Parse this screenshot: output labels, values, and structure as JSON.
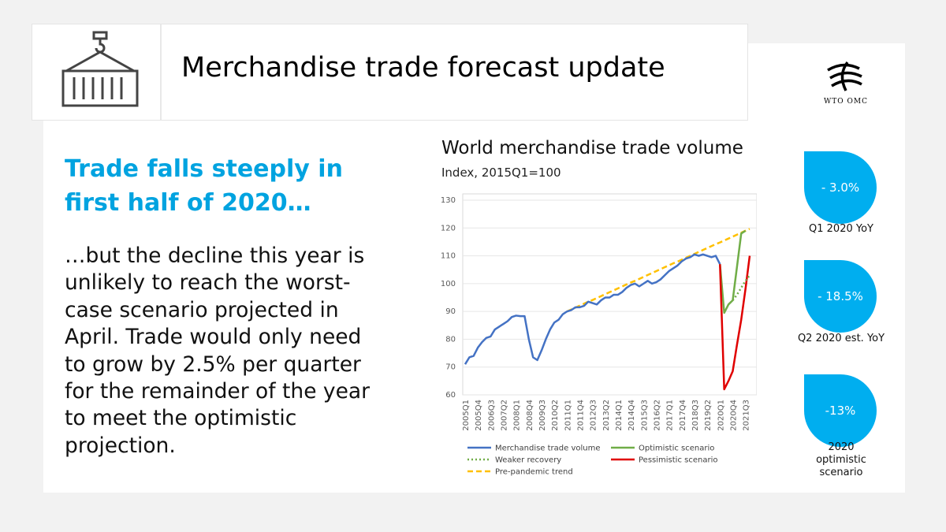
{
  "header": {
    "title": "Merchandise trade forecast update",
    "logo_text": "WTO OMC"
  },
  "headline": {
    "lines": [
      "Trade falls steeply in",
      "first half of 2020…"
    ]
  },
  "body": {
    "lines": [
      "…but the decline this year is",
      "unlikely to reach the worst-",
      "case scenario projected in",
      "April. Trade would only need",
      "to grow by 2.5% per quarter",
      "for the remainder of the year",
      "to meet the optimistic",
      "projection."
    ]
  },
  "stats": [
    {
      "value": "- 3.0%",
      "label": [
        "Q1 2020 YoY"
      ]
    },
    {
      "value": "- 18.5%",
      "label": [
        "Q2 2020 est. YoY"
      ]
    },
    {
      "value": "-13%",
      "label": [
        "2020",
        "optimistic",
        "scenario"
      ]
    }
  ],
  "chart_data": {
    "type": "line",
    "title": "World merchandise trade volume",
    "subtitle": "Index, 2015Q1=100",
    "categories": [
      "2005Q1",
      null,
      null,
      "2005Q4",
      null,
      null,
      "2006Q3",
      null,
      null,
      "2007Q2",
      null,
      null,
      "2008Q1",
      null,
      null,
      "2008Q4",
      null,
      null,
      "2009Q3",
      null,
      null,
      "2010Q2",
      null,
      null,
      "2011Q1",
      null,
      null,
      "2011Q4",
      null,
      null,
      "2012Q3",
      null,
      null,
      "2013Q2",
      null,
      null,
      "2014Q1",
      null,
      null,
      "2014Q4",
      null,
      null,
      "2015Q3",
      null,
      null,
      "2016Q2",
      null,
      null,
      "2017Q1",
      null,
      null,
      "2017Q4",
      null,
      null,
      "2018Q3",
      null,
      null,
      "2019Q2",
      null,
      null,
      "2020Q1",
      null,
      null,
      "2020Q4",
      null,
      null,
      "2021Q3",
      null
    ],
    "ylim": [
      60,
      130
    ],
    "yticks": [
      60,
      70,
      80,
      90,
      100,
      110,
      120,
      130
    ],
    "grid": true,
    "series": [
      {
        "name": "Merchandise trade volume",
        "color": "#4472c4",
        "style": "solid",
        "values": [
          71,
          73.5,
          74,
          77,
          79,
          80.5,
          81,
          83.5,
          84.5,
          85.5,
          86.5,
          88,
          88.5,
          88.3,
          88.3,
          80,
          73.5,
          72.5,
          76,
          80,
          83.5,
          86,
          87,
          89,
          90,
          90.5,
          91.5,
          91.5,
          92,
          93.5,
          93,
          92.5,
          94,
          95,
          95,
          96,
          96,
          97,
          98.5,
          99.5,
          100,
          99,
          100,
          101,
          100,
          100.5,
          101.5,
          103,
          104.5,
          105.5,
          106.5,
          108,
          109,
          109.5,
          110.5,
          110,
          110.5,
          110,
          109.5,
          110,
          107,
          null,
          null,
          null,
          null,
          null,
          null,
          null
        ]
      },
      {
        "name": "Optimistic scenario",
        "color": "#70ad47",
        "style": "solid",
        "values": [
          null,
          null,
          null,
          null,
          null,
          null,
          null,
          null,
          null,
          null,
          null,
          null,
          null,
          null,
          null,
          null,
          null,
          null,
          null,
          null,
          null,
          null,
          null,
          null,
          null,
          null,
          null,
          null,
          null,
          null,
          null,
          null,
          null,
          null,
          null,
          null,
          null,
          null,
          null,
          null,
          null,
          null,
          null,
          null,
          null,
          null,
          null,
          null,
          null,
          null,
          null,
          null,
          null,
          null,
          null,
          null,
          null,
          null,
          null,
          null,
          107,
          89.5,
          92.5,
          94,
          106,
          118,
          119,
          null
        ]
      },
      {
        "name": "Weaker recovery",
        "color": "#70ad47",
        "style": "dotted",
        "values": [
          null,
          null,
          null,
          null,
          null,
          null,
          null,
          null,
          null,
          null,
          null,
          null,
          null,
          null,
          null,
          null,
          null,
          null,
          null,
          null,
          null,
          null,
          null,
          null,
          null,
          null,
          null,
          null,
          null,
          null,
          null,
          null,
          null,
          null,
          null,
          null,
          null,
          null,
          null,
          null,
          null,
          null,
          null,
          null,
          null,
          null,
          null,
          null,
          null,
          null,
          null,
          null,
          null,
          null,
          null,
          null,
          null,
          null,
          null,
          null,
          null,
          null,
          null,
          94,
          96,
          98.5,
          101,
          103
        ]
      },
      {
        "name": "Pessimistic scenario",
        "color": "#e00000",
        "style": "solid",
        "values": [
          null,
          null,
          null,
          null,
          null,
          null,
          null,
          null,
          null,
          null,
          null,
          null,
          null,
          null,
          null,
          null,
          null,
          null,
          null,
          null,
          null,
          null,
          null,
          null,
          null,
          null,
          null,
          null,
          null,
          null,
          null,
          null,
          null,
          null,
          null,
          null,
          null,
          null,
          null,
          null,
          null,
          null,
          null,
          null,
          null,
          null,
          null,
          null,
          null,
          null,
          null,
          null,
          null,
          null,
          null,
          null,
          null,
          null,
          null,
          null,
          107,
          62,
          65,
          68.5,
          78,
          87,
          98,
          110
        ]
      },
      {
        "name": "Pre-pandemic trend",
        "color": "#ffc000",
        "style": "dashed",
        "values": [
          null,
          null,
          null,
          null,
          null,
          null,
          null,
          null,
          null,
          null,
          null,
          null,
          null,
          null,
          null,
          null,
          null,
          null,
          null,
          null,
          null,
          null,
          null,
          null,
          90.0,
          90.7,
          91.4,
          92.1,
          92.8,
          93.5,
          94.1,
          94.8,
          95.5,
          96.2,
          96.9,
          97.6,
          98.3,
          99.0,
          99.7,
          100.4,
          101.0,
          101.7,
          102.4,
          103.1,
          103.8,
          104.5,
          105.2,
          105.9,
          106.6,
          107.3,
          107.9,
          108.6,
          109.3,
          110.0,
          110.7,
          111.4,
          112.1,
          112.8,
          113.5,
          114.2,
          114.8,
          115.5,
          116.2,
          116.9,
          117.6,
          118.3,
          119.0,
          119.7
        ]
      }
    ]
  }
}
